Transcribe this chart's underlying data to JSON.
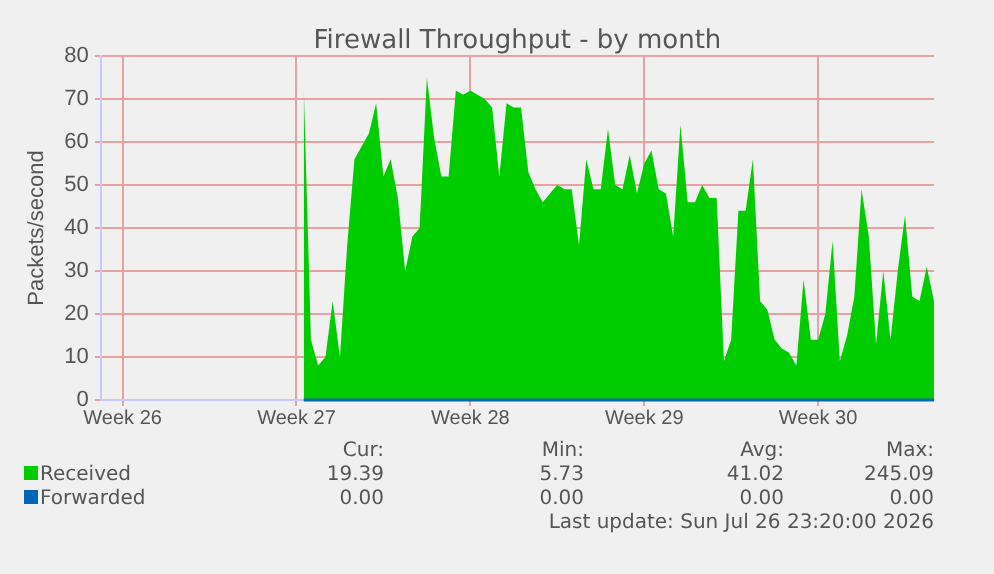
{
  "chart_data": {
    "type": "area",
    "title": "Firewall Throughput - by month",
    "ylabel": "Packets/second",
    "categories": [
      null,
      null,
      null,
      "Week 26",
      null,
      null,
      null,
      null,
      null,
      null,
      null,
      null,
      null,
      null,
      null,
      null,
      null,
      null,
      null,
      null,
      null,
      null,
      null,
      null,
      null,
      null,
      null,
      "Week 27",
      null,
      null,
      null,
      null,
      null,
      null,
      null,
      null,
      null,
      null,
      null,
      null,
      null,
      null,
      null,
      null,
      null,
      null,
      null,
      null,
      null,
      null,
      null,
      "Week 28",
      null,
      null,
      null,
      null,
      null,
      null,
      null,
      null,
      null,
      null,
      null,
      null,
      null,
      null,
      null,
      null,
      null,
      null,
      null,
      null,
      null,
      null,
      null,
      "Week 29",
      null,
      null,
      null,
      null,
      null,
      null,
      null,
      null,
      null,
      null,
      null,
      null,
      null,
      null,
      null,
      null,
      null,
      null,
      null,
      null,
      null,
      null,
      null,
      "Week 30",
      null,
      null,
      null,
      null,
      null,
      null,
      null,
      null,
      null,
      null,
      null,
      null,
      null,
      null,
      null,
      null
    ],
    "ylim": [
      0,
      80
    ],
    "yticks": [
      0,
      10,
      20,
      30,
      40,
      50,
      60,
      70,
      80
    ],
    "grid": true,
    "legend": "bottom left",
    "series": [
      {
        "name": "Received",
        "color": "#00cc00",
        "values": [
          null,
          null,
          null,
          null,
          null,
          null,
          null,
          null,
          null,
          null,
          null,
          null,
          null,
          null,
          null,
          null,
          null,
          null,
          null,
          null,
          null,
          null,
          null,
          null,
          null,
          null,
          null,
          null,
          73,
          14,
          8,
          10,
          23,
          10,
          36,
          56,
          59,
          62,
          69,
          52,
          56,
          47,
          30,
          38,
          40,
          75,
          61,
          52,
          52,
          72,
          71,
          72,
          71,
          70,
          68,
          52,
          69,
          68,
          68,
          53,
          49,
          46,
          48,
          50,
          49,
          49,
          36,
          56,
          49,
          49,
          63,
          50,
          49,
          57,
          48,
          55,
          58,
          49,
          48,
          38,
          64,
          46,
          46,
          50,
          47,
          47,
          9,
          14,
          44,
          44,
          56,
          23,
          21,
          14,
          12,
          11,
          8,
          28,
          14,
          14,
          20,
          37,
          9,
          15,
          24,
          49,
          38,
          13,
          30,
          14,
          30,
          43,
          24,
          23,
          31,
          23
        ]
      },
      {
        "name": "Forwarded",
        "color": "#0066b3",
        "type": "line",
        "values": [
          null,
          null,
          null,
          null,
          null,
          null,
          null,
          null,
          null,
          null,
          null,
          null,
          null,
          null,
          null,
          null,
          null,
          null,
          null,
          null,
          null,
          null,
          null,
          null,
          null,
          null,
          null,
          null,
          0,
          0,
          0,
          0,
          0,
          0,
          0,
          0,
          0,
          0,
          0,
          0,
          0,
          0,
          0,
          0,
          0,
          0,
          0,
          0,
          0,
          0,
          0,
          0,
          0,
          0,
          0,
          0,
          0,
          0,
          0,
          0,
          0,
          0,
          0,
          0,
          0,
          0,
          0,
          0,
          0,
          0,
          0,
          0,
          0,
          0,
          0,
          0,
          0,
          0,
          0,
          0,
          0,
          0,
          0,
          0,
          0,
          0,
          0,
          0,
          0,
          0,
          0,
          0,
          0,
          0,
          0,
          0,
          0,
          0,
          0,
          0,
          0,
          0,
          0,
          0,
          0,
          0,
          0,
          0,
          0,
          0,
          0,
          0,
          0,
          0,
          0,
          0
        ]
      }
    ],
    "annotations": [
      "Cur:",
      "Min:",
      "Avg:",
      "Max:",
      "19.39",
      "5.73",
      "41.02",
      "245.09",
      "0.00",
      "0.00",
      "0.00",
      "0.00",
      "Last update: Sun Jul 26 23:20:00 2026"
    ]
  }
}
